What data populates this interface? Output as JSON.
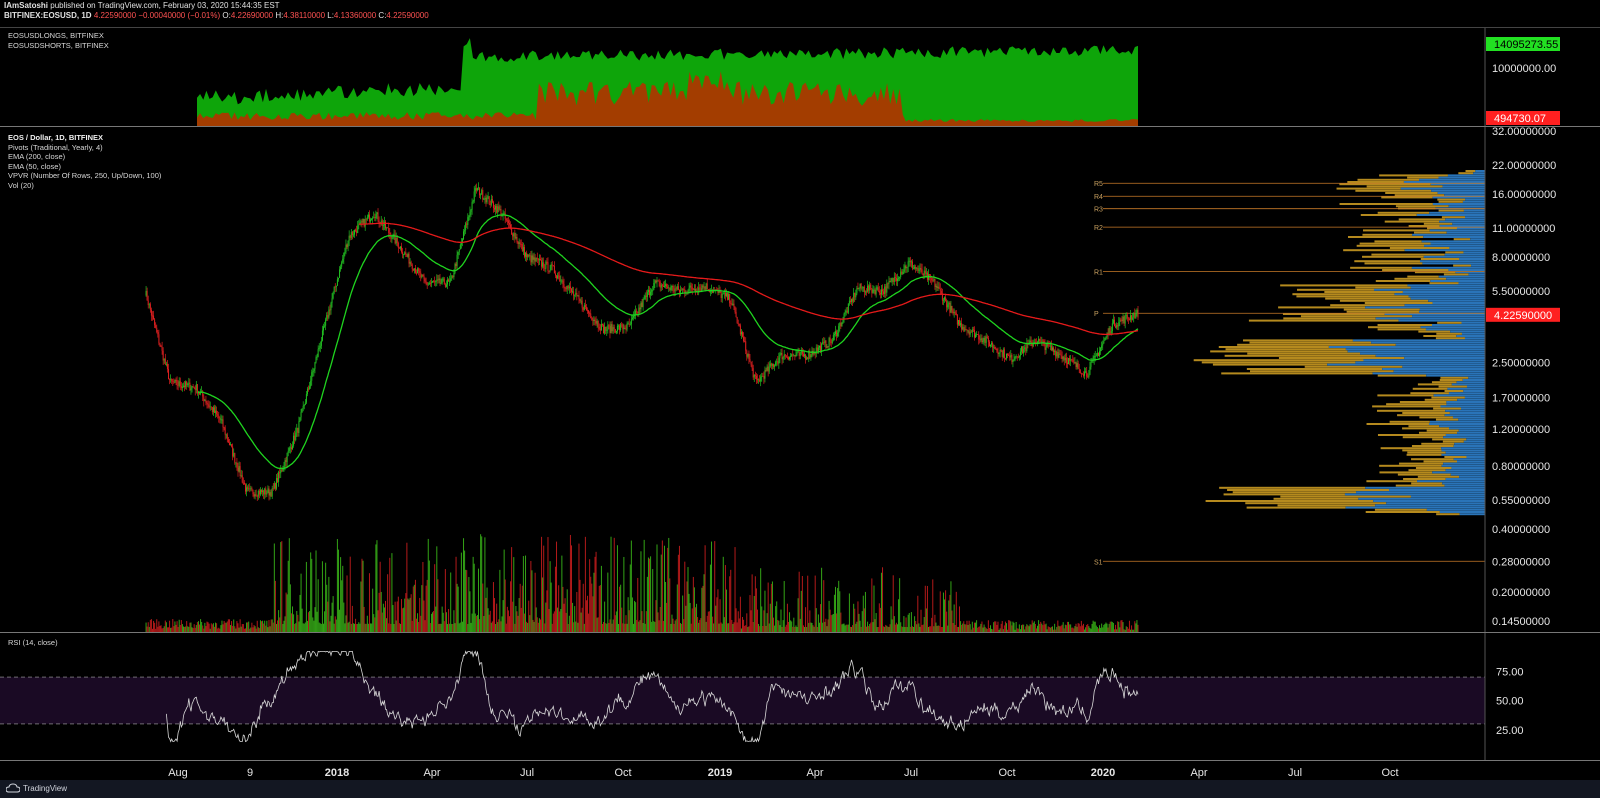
{
  "header": {
    "line1_user": "IAmSatoshi",
    "line1_rest": " published on TradingView.com, February 03, 2020 15:44:35 EST",
    "line2_symbol": "BITFINEX:EOSUSD, 1D",
    "line2_price": "4.22590000",
    "line2_change": "−0.00040000 (−0.01%)",
    "o_label": "O:",
    "o_val": "4.22690000",
    "h_label": "H:",
    "h_val": "4.38110000",
    "l_label": "L:",
    "l_val": "4.13360000",
    "c_label": "C:",
    "c_val": "4.22590000"
  },
  "top_pane": {
    "legend": [
      "EOSUSDLONGS, BITFINEX",
      "EOSUSDSHORTS, BITFINEX"
    ],
    "axis_labels": [
      "10000000.00"
    ],
    "badge_longs": "14095273.55",
    "badge_shorts": "494730.07",
    "colors": {
      "longs": "#0ea50a",
      "shorts": "#a33d00"
    }
  },
  "main_pane": {
    "title": "EOS / Dollar, 1D, BITFINEX",
    "indicators": [
      "Pivots (Traditional, Yearly, 4)",
      "EMA (200, close)",
      "EMA (50, close)",
      "VPVR (Number Of Rows, 250, Up/Down, 100)",
      "Vol (20)"
    ],
    "price_labels": [
      "32.00000000",
      "22.00000000",
      "16.00000000",
      "11.00000000",
      "8.00000000",
      "5.50000000",
      "2.50000000",
      "1.70000000",
      "1.20000000",
      "0.80000000",
      "0.55000000",
      "0.40000000",
      "0.28000000",
      "0.20000000",
      "0.14500000"
    ],
    "last_price_badge": "4.22590000",
    "pivot_labels": [
      "R5",
      "R4",
      "R3",
      "R2",
      "R1",
      "P",
      "S1"
    ],
    "colors": {
      "up": "#22c022",
      "down": "#e02020",
      "ema200": "#e51a1a",
      "ema50": "#1fd41f",
      "pivot": "#c87a28",
      "vp_gold": "#b58a1e",
      "vp_blue": "#2a74b8",
      "badge": "#ff2020"
    }
  },
  "rsi_pane": {
    "label": "RSI (14, close)",
    "levels": [
      "75.00",
      "50.00",
      "25.00"
    ],
    "colors": {
      "band": "#1a0a24",
      "line": "#d8d8d8"
    }
  },
  "x_axis": {
    "labels": [
      "Aug",
      "9",
      "2018",
      "Apr",
      "Jul",
      "Oct",
      "2019",
      "Apr",
      "Jul",
      "Oct",
      "2020",
      "Apr",
      "Jul",
      "Oct"
    ],
    "bold": [
      false,
      false,
      true,
      false,
      false,
      false,
      true,
      false,
      false,
      false,
      true,
      false,
      false,
      false
    ]
  },
  "footer": {
    "brand": "TradingView"
  },
  "chart_data": {
    "type": "line",
    "series": [
      {
        "values": [
          5.5,
          2.0,
          1.9,
          1.3,
          0.6,
          0.6,
          1.2,
          3.5,
          10,
          13,
          9,
          6,
          6,
          17,
          13,
          8,
          7,
          5,
          3.6,
          3.7,
          6,
          5.5,
          5.8,
          5.0,
          2.0,
          2.7,
          2.7,
          3.2,
          5.7,
          5.5,
          7.5,
          6.0,
          3.8,
          3.2,
          2.6,
          3.2,
          2.7,
          2.2,
          3.8,
          4.3
        ]
      }
    ],
    "ylim": [
      0.145,
      32
    ],
    "y_scale": "log",
    "grid": false
  }
}
